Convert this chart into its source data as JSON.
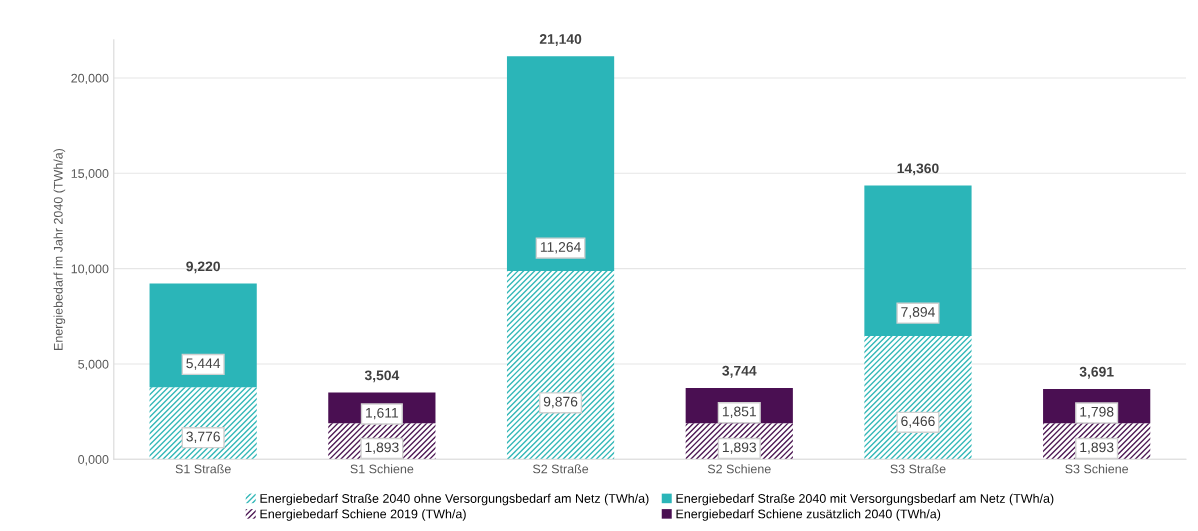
{
  "chart_data": {
    "type": "bar",
    "stacked": true,
    "ylabel": "Energiebedarf im Jahr 2040 (TWh/a)",
    "categories": [
      "S1 Straße",
      "S1 Schiene",
      "S2 Straße",
      "S2 Schiene",
      "S3 Straße",
      "S3 Schiene"
    ],
    "series": [
      {
        "name": "Energiebedarf Straße 2040 ohne Versorgungsbedarf am Netz (TWh/a)",
        "color": "#33b8b8",
        "values": [
          3776,
          null,
          9876,
          null,
          6466,
          null
        ],
        "value_labels": [
          "3,776",
          null,
          "9,876",
          null,
          "6,466",
          null
        ]
      },
      {
        "name": "Energiebedarf Straße 2040 mit Versorgungsbedarf am Netz (TWh/a)",
        "color": "#2bb5b8",
        "values": [
          5444,
          null,
          11264,
          null,
          7894,
          null
        ],
        "value_labels": [
          "5,444",
          null,
          "11,264",
          null,
          "7,894",
          null
        ]
      },
      {
        "name": "Energiebedarf Schiene 2019 (TWh/a)",
        "color": "#4e1a55",
        "values": [
          null,
          1893,
          null,
          1893,
          null,
          1893
        ],
        "value_labels": [
          null,
          "1,893",
          null,
          "1,893",
          null,
          "1,893"
        ]
      },
      {
        "name": "Energiebedarf Schiene zusätzlich 2040 (TWh/a)",
        "color": "#4a0f52",
        "values": [
          null,
          1611,
          null,
          1851,
          null,
          1798
        ],
        "value_labels": [
          null,
          "1,611",
          null,
          "1,851",
          null,
          "1,798"
        ]
      }
    ],
    "totals": [
      "9,220",
      "3,504",
      "21,140",
      "3,744",
      "14,360",
      "3,691"
    ],
    "ylim": [
      0,
      22000
    ],
    "yticks": [
      {
        "value": 0,
        "label": "0,000"
      },
      {
        "value": 5000,
        "label": "5,000"
      },
      {
        "value": 10000,
        "label": "10,000"
      },
      {
        "value": 15000,
        "label": "15,000"
      },
      {
        "value": 20000,
        "label": "20,000"
      }
    ],
    "grid": "y",
    "legend": "bottom"
  }
}
